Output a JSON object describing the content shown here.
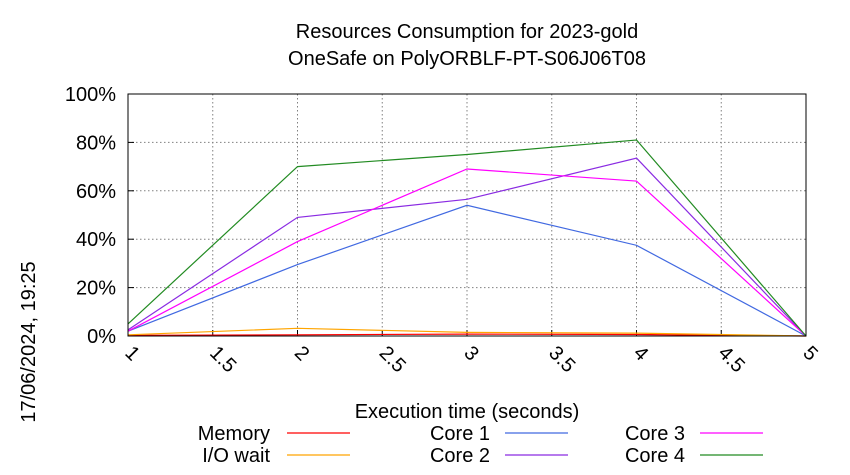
{
  "chart_data": {
    "type": "line",
    "title": "Resources Consumption for 2023-gold",
    "subtitle": "OneSafe on PolyORBLF-PT-S06J06T08",
    "xlabel": "Execution time (seconds)",
    "ylabel": "",
    "timestamp": "17/06/2024, 19:25",
    "xlim": [
      1,
      5
    ],
    "ylim": [
      0,
      100
    ],
    "x_ticks": [
      "1",
      "1.5",
      "2",
      "2.5",
      "3",
      "3.5",
      "4",
      "4.5",
      "5"
    ],
    "y_ticks": [
      "0%",
      "20%",
      "40%",
      "60%",
      "80%",
      "100%"
    ],
    "grid": true,
    "legend_position": "bottom",
    "series": [
      {
        "name": "Memory",
        "color": "#ff0000",
        "x": [
          1,
          2,
          3,
          4,
          5
        ],
        "y": [
          0.3,
          0.5,
          0.8,
          0.6,
          0
        ]
      },
      {
        "name": "I/O wait",
        "color": "#ffa500",
        "x": [
          1,
          2,
          3,
          4,
          5
        ],
        "y": [
          0.5,
          3.2,
          1.5,
          1.2,
          0
        ]
      },
      {
        "name": "Core 1",
        "color": "#4169e1",
        "x": [
          1,
          2,
          3,
          4,
          5
        ],
        "y": [
          2,
          29.5,
          54,
          37.5,
          0
        ]
      },
      {
        "name": "Core 2",
        "color": "#8a2be2",
        "x": [
          1,
          2,
          3,
          4,
          5
        ],
        "y": [
          2.5,
          49,
          56.5,
          73.5,
          0
        ]
      },
      {
        "name": "Core 3",
        "color": "#ff00ff",
        "x": [
          1,
          2,
          3,
          4,
          5
        ],
        "y": [
          2,
          39,
          69,
          64,
          0
        ]
      },
      {
        "name": "Core 4",
        "color": "#228b22",
        "x": [
          1,
          2,
          3,
          4,
          5
        ],
        "y": [
          5,
          70,
          75,
          81,
          0
        ]
      }
    ]
  }
}
